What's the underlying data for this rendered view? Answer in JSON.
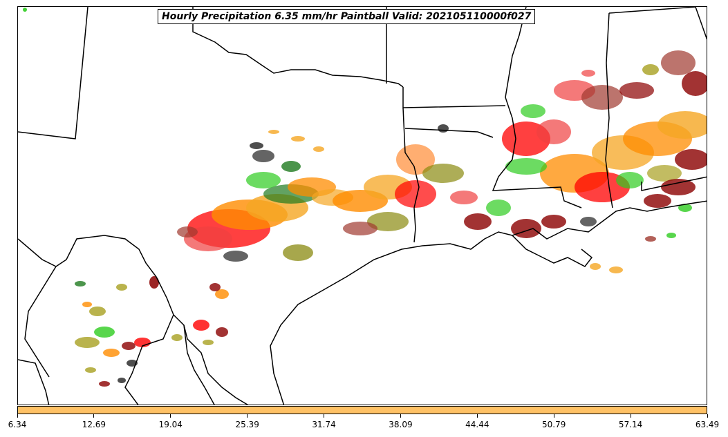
{
  "title": "Hourly Precipitation 6.35 mm/hr Paintball Valid: 202105110000f027",
  "colorbar": {
    "color": "#ffc266",
    "tick_labels": [
      "6.34",
      "12.69",
      "19.04",
      "25.39",
      "31.74",
      "38.09",
      "44.44",
      "50.79",
      "57.14",
      "63.49"
    ]
  },
  "palette": {
    "red": "#ff0000",
    "light-red": "#f04040",
    "dark-red": "#8b0000",
    "brown-red": "#a0392f",
    "orange": "#ff8c00",
    "light-orange": "#ff9a4d",
    "amber": "#f5a623",
    "green": "#2ecc1f",
    "dark-green": "#1f7a1f",
    "olive": "#8a8a10",
    "yellow-olive": "#a8a020",
    "black": "#222222"
  },
  "map": {
    "region": "South-central United States / Gulf Coast",
    "boundaries": "state borders, coastline"
  }
}
